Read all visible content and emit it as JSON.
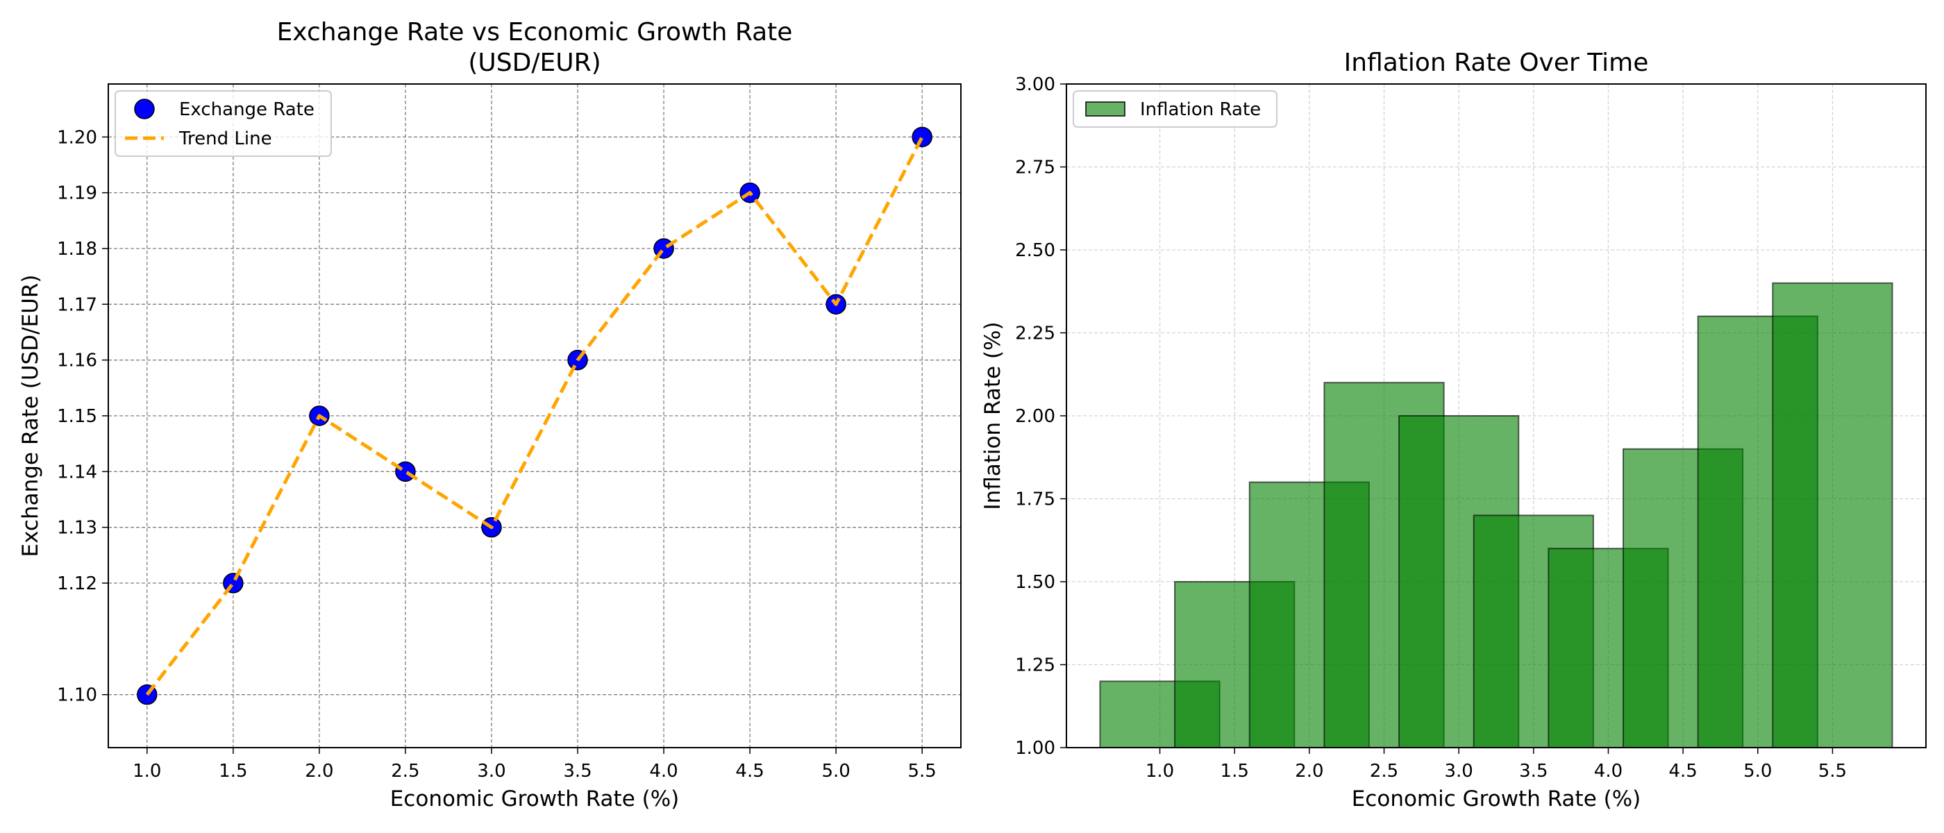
{
  "chart_data": [
    {
      "type": "scatter",
      "title_line1": "Exchange Rate vs Economic Growth Rate",
      "title_line2": "(USD/EUR)",
      "xlabel": "Economic Growth Rate (%)",
      "ylabel": "Exchange Rate (USD/EUR)",
      "x": [
        1.0,
        1.5,
        2.0,
        2.5,
        3.0,
        3.5,
        4.0,
        4.5,
        5.0,
        5.5
      ],
      "series": [
        {
          "name": "Exchange Rate",
          "kind": "scatter",
          "values": [
            1.1,
            1.12,
            1.15,
            1.14,
            1.13,
            1.16,
            1.18,
            1.19,
            1.17,
            1.2
          ],
          "color": "#0000ff",
          "edge_color": "#000000"
        },
        {
          "name": "Trend Line",
          "kind": "dashed-line",
          "values": [
            1.1,
            1.12,
            1.15,
            1.14,
            1.13,
            1.16,
            1.18,
            1.19,
            1.17,
            1.2
          ],
          "color": "#ffa500"
        }
      ],
      "x_ticks": [
        "1.0",
        "1.5",
        "2.0",
        "2.5",
        "3.0",
        "3.5",
        "4.0",
        "4.5",
        "5.0",
        "5.5"
      ],
      "y_ticks": [
        "1.10",
        "1.12",
        "1.13",
        "1.14",
        "1.15",
        "1.16",
        "1.17",
        "1.18",
        "1.19",
        "1.20"
      ],
      "xlim": [
        0.775,
        5.725
      ],
      "ylim": [
        1.0905,
        1.2095
      ],
      "grid": true,
      "legend_position": "upper-left"
    },
    {
      "type": "bar",
      "title": "Inflation Rate Over Time",
      "xlabel": "Economic Growth Rate (%)",
      "ylabel": "Inflation Rate (%)",
      "x": [
        1.0,
        1.5,
        2.0,
        2.5,
        3.0,
        3.5,
        4.0,
        4.5,
        5.0,
        5.5
      ],
      "series": [
        {
          "name": "Inflation Rate",
          "values": [
            1.2,
            1.5,
            1.8,
            2.1,
            2.0,
            1.7,
            1.6,
            1.9,
            2.3,
            2.4
          ],
          "color": "#008000",
          "alpha": 0.6,
          "edge_color": "#000000",
          "bar_width": 0.8
        }
      ],
      "x_ticks": [
        "1.0",
        "1.5",
        "2.0",
        "2.5",
        "3.0",
        "3.5",
        "4.0",
        "4.5",
        "5.0",
        "5.5"
      ],
      "y_ticks": [
        "1.00",
        "1.25",
        "1.50",
        "1.75",
        "2.00",
        "2.25",
        "2.50",
        "2.75",
        "3.00"
      ],
      "xlim": [
        0.375,
        6.125
      ],
      "ylim": [
        1.0,
        3.0
      ],
      "grid": true,
      "legend_position": "upper-left"
    }
  ]
}
